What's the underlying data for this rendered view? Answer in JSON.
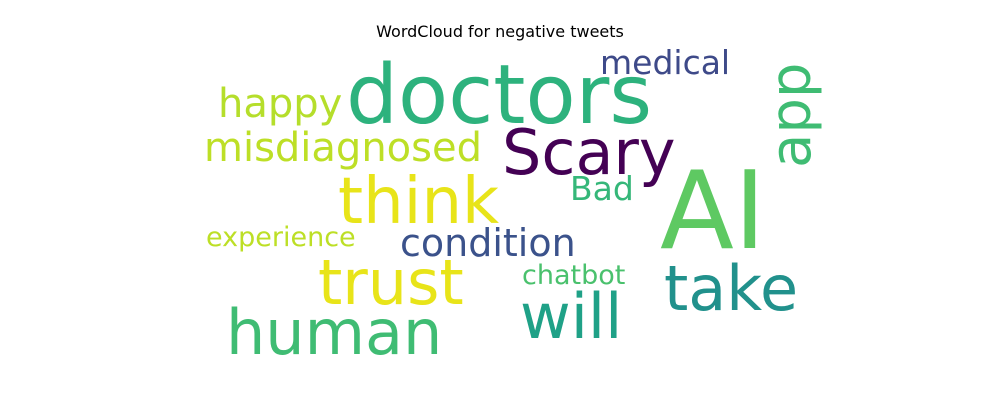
{
  "title": "WordCloud for negative tweets",
  "words": [
    {
      "text": "doctors",
      "color": "#2db27d"
    },
    {
      "text": "AI",
      "color": "#5ec962"
    },
    {
      "text": "Scary",
      "color": "#440154"
    },
    {
      "text": "think",
      "color": "#e8e419"
    },
    {
      "text": "trust",
      "color": "#e8e419"
    },
    {
      "text": "human",
      "color": "#3fbc73"
    },
    {
      "text": "will",
      "color": "#1fa187"
    },
    {
      "text": "take",
      "color": "#21918c"
    },
    {
      "text": "app",
      "color": "#3fbc73"
    },
    {
      "text": "condition",
      "color": "#3b528b"
    },
    {
      "text": "misdiagnosed",
      "color": "#bddf26"
    },
    {
      "text": "happy",
      "color": "#b5de2b"
    },
    {
      "text": "medical",
      "color": "#3e4a89"
    },
    {
      "text": "Bad",
      "color": "#35b779"
    },
    {
      "text": "experience",
      "color": "#bddf26"
    },
    {
      "text": "chatbot",
      "color": "#4ac16d"
    }
  ]
}
